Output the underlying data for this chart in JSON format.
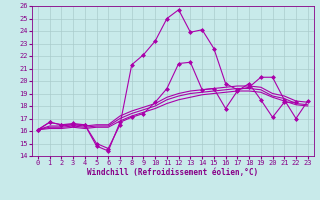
{
  "xlabel": "Windchill (Refroidissement éolien,°C)",
  "bg_color": "#c8eaea",
  "line_color": "#aa00aa",
  "grid_color": "#aacccc",
  "xlim": [
    -0.5,
    23.5
  ],
  "ylim": [
    14,
    26
  ],
  "xticks": [
    0,
    1,
    2,
    3,
    4,
    5,
    6,
    7,
    8,
    9,
    10,
    11,
    12,
    13,
    14,
    15,
    16,
    17,
    18,
    19,
    20,
    21,
    22,
    23
  ],
  "yticks": [
    14,
    15,
    16,
    17,
    18,
    19,
    20,
    21,
    22,
    23,
    24,
    25,
    26
  ],
  "series": [
    {
      "x": [
        0,
        1,
        2,
        3,
        4,
        5,
        6,
        7,
        8,
        9,
        10,
        11,
        12,
        13,
        14,
        15,
        16,
        17,
        18,
        19,
        20,
        21,
        22
      ],
      "y": [
        16.1,
        16.7,
        16.5,
        16.6,
        16.5,
        14.8,
        14.4,
        16.7,
        17.1,
        17.4,
        18.3,
        19.4,
        21.4,
        21.5,
        19.3,
        19.4,
        17.8,
        19.2,
        19.8,
        18.5,
        17.1,
        18.3,
        18.3
      ],
      "marker": "D",
      "ms": 2.0,
      "lw": 0.8
    },
    {
      "x": [
        0,
        1,
        2,
        3,
        4,
        5,
        6,
        7,
        8,
        9,
        10,
        11,
        12,
        13,
        14,
        15,
        16,
        17,
        18,
        19,
        20,
        21,
        22,
        23
      ],
      "y": [
        16.1,
        16.4,
        16.4,
        16.5,
        16.4,
        16.5,
        16.5,
        17.2,
        17.6,
        17.9,
        18.2,
        18.7,
        19.0,
        19.2,
        19.3,
        19.4,
        19.5,
        19.6,
        19.6,
        19.5,
        19.0,
        18.8,
        18.4,
        18.3
      ],
      "marker": null,
      "ms": 0,
      "lw": 0.8
    },
    {
      "x": [
        0,
        1,
        2,
        3,
        4,
        5,
        6,
        7,
        8,
        9,
        10,
        11,
        12,
        13,
        14,
        15,
        16,
        17,
        18,
        19,
        20,
        21,
        22,
        23
      ],
      "y": [
        16.1,
        16.3,
        16.3,
        16.4,
        16.3,
        16.4,
        16.4,
        17.0,
        17.4,
        17.7,
        18.0,
        18.5,
        18.8,
        19.0,
        19.1,
        19.2,
        19.3,
        19.4,
        19.4,
        19.3,
        18.8,
        18.6,
        18.2,
        18.1
      ],
      "marker": null,
      "ms": 0,
      "lw": 0.8
    },
    {
      "x": [
        0,
        1,
        2,
        3,
        4,
        5,
        6,
        7,
        8,
        9,
        10,
        11,
        12,
        13,
        14,
        15,
        16,
        17,
        18,
        19,
        20,
        21,
        22,
        23
      ],
      "y": [
        16.1,
        16.2,
        16.2,
        16.3,
        16.2,
        16.3,
        16.3,
        16.8,
        17.2,
        17.5,
        17.8,
        18.2,
        18.5,
        18.7,
        18.9,
        19.0,
        19.1,
        19.2,
        19.2,
        19.1,
        18.7,
        18.4,
        18.1,
        18.0
      ],
      "marker": null,
      "ms": 0,
      "lw": 0.8
    },
    {
      "x": [
        0,
        1,
        2,
        3,
        4,
        5,
        6,
        7,
        8,
        9,
        10,
        11,
        12,
        13,
        14,
        15,
        16,
        17,
        18,
        19,
        20,
        21,
        22,
        23
      ],
      "y": [
        16.1,
        16.7,
        16.5,
        16.5,
        16.5,
        15.0,
        14.6,
        16.5,
        21.3,
        22.1,
        23.2,
        25.0,
        25.7,
        23.9,
        24.1,
        22.6,
        19.8,
        19.3,
        19.5,
        20.3,
        20.3,
        18.5,
        17.0,
        18.4
      ],
      "marker": "D",
      "ms": 2.0,
      "lw": 0.8
    }
  ],
  "tick_fontsize": 5.0,
  "label_fontsize": 5.5
}
